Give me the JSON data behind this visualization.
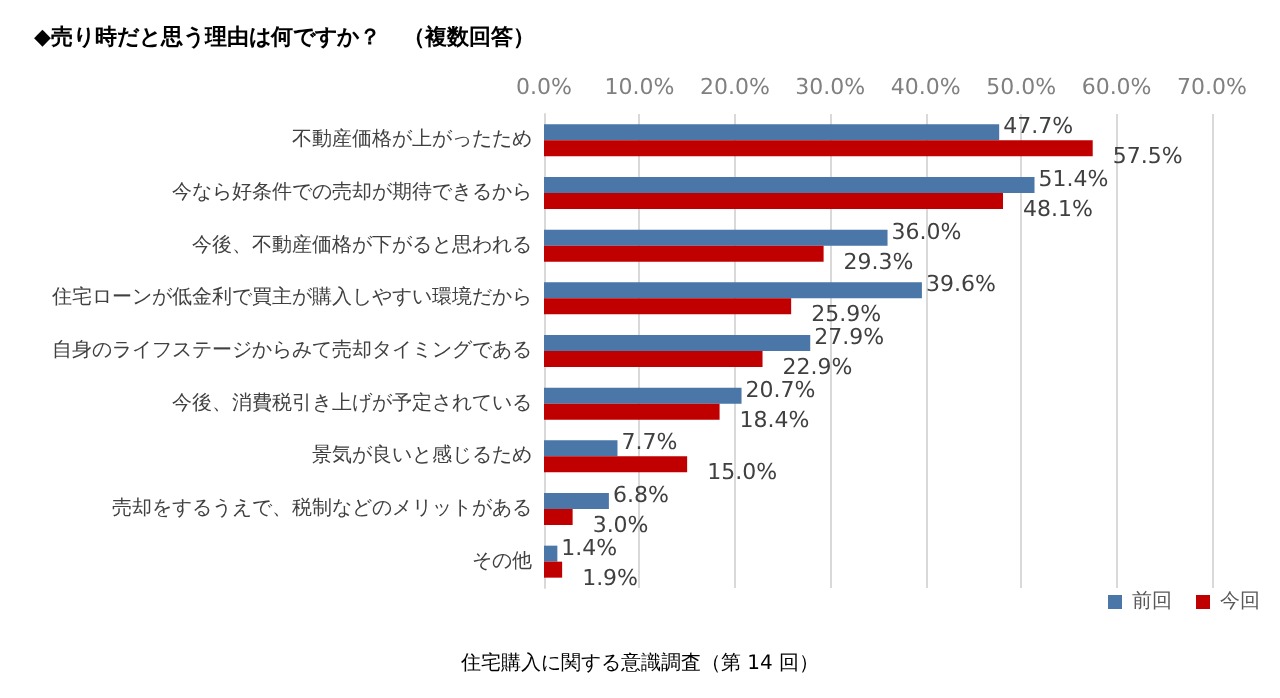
{
  "chart_data": {
    "type": "bar",
    "orientation": "horizontal",
    "title": "◆売り時だと思う理由は何ですか？　（複数回答）",
    "categories": [
      "不動産価格が上がったため",
      "今なら好条件での売却が期待できるから",
      "今後、不動産価格が下がると思われる",
      "住宅ローンが低金利で買主が購入しやすい環境だから",
      "自身のライフステージからみて売却タイミングである",
      "今後、消費税引き上げが予定されている",
      "景気が良いと感じるため",
      "売却をするうえで、税制などのメリットがある",
      "その他"
    ],
    "series": [
      {
        "name": "前回",
        "color": "#4a76a8",
        "values": [
          47.7,
          51.4,
          36.0,
          39.6,
          27.9,
          20.7,
          7.7,
          6.8,
          1.4
        ],
        "value_labels": [
          "47.7%",
          "51.4%",
          "36.0%",
          "39.6%",
          "27.9%",
          "20.7%",
          "7.7%",
          "6.8%",
          "1.4%"
        ]
      },
      {
        "name": "今回",
        "color": "#c00000",
        "values": [
          57.5,
          48.1,
          29.3,
          25.9,
          22.9,
          18.4,
          15.0,
          3.0,
          1.9
        ],
        "value_labels": [
          "57.5%",
          "48.1%",
          "29.3%",
          "25.9%",
          "22.9%",
          "18.4%",
          "15.0%",
          "3.0%",
          "1.9%"
        ]
      }
    ],
    "xlim": [
      0,
      70
    ],
    "xticks": [
      {
        "value": 0,
        "label": "0.0%"
      },
      {
        "value": 10,
        "label": "10.0%"
      },
      {
        "value": 20,
        "label": "20.0%"
      },
      {
        "value": 30,
        "label": "30.0%"
      },
      {
        "value": 40,
        "label": "40.0%"
      },
      {
        "value": 50,
        "label": "50.0%"
      },
      {
        "value": 60,
        "label": "60.0%"
      },
      {
        "value": 70,
        "label": "70.0%"
      }
    ],
    "grid": "x",
    "legend": "bottom right",
    "annotations": [
      "住宅購入に関する意識調査（第 14 回）"
    ]
  }
}
